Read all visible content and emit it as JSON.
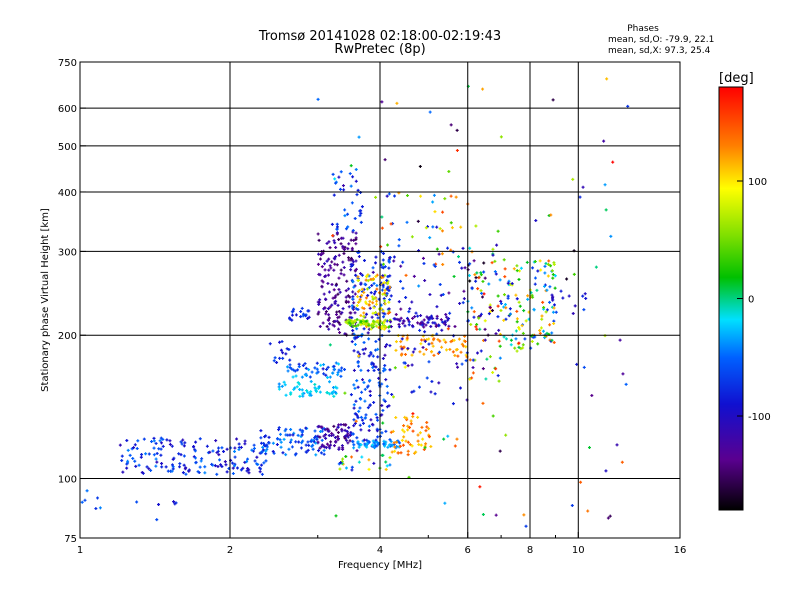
{
  "chart_data": {
    "type": "scatter",
    "title": "Tromsø 20141028 02:18:00-02:19:43",
    "subtitle": "RwPretec (8p)",
    "xlabel": "Frequency [MHz]",
    "ylabel": "Stationary phase Virtual Height [km]",
    "x_scale": "log",
    "y_scale": "log",
    "xlim": [
      1,
      16
    ],
    "ylim": [
      75,
      750
    ],
    "x_ticks": [
      1,
      2,
      4,
      6,
      8,
      10,
      16
    ],
    "y_ticks": [
      75,
      100,
      200,
      300,
      400,
      500,
      600,
      750
    ],
    "x_tick_labels": [
      "1",
      "2",
      "4",
      "6",
      "8",
      "10",
      "16"
    ],
    "y_tick_labels": [
      "75",
      "100",
      "200",
      "300",
      "400",
      "500",
      "600",
      "750"
    ],
    "x_minor": [
      3,
      5,
      7,
      9
    ],
    "grid": true,
    "phase_box": {
      "title": "Phases",
      "line1": "mean, sd,O: -79.9, 22.1",
      "line2": "mean, sd,X:  97.3, 25.4"
    },
    "colorbar": {
      "label": "[deg]",
      "range": [
        -180,
        180
      ],
      "ticks": [
        100,
        0,
        -100
      ],
      "tick_labels": [
        "100",
        "0",
        "-100"
      ]
    },
    "clusters": [
      {
        "f": [
          1.0,
          1.1
        ],
        "h": [
          85,
          95
        ],
        "phase": [
          -80,
          -30
        ],
        "n": 6
      },
      {
        "f": [
          1.25,
          1.65
        ],
        "h": [
          80,
          90
        ],
        "phase": [
          -100,
          -60
        ],
        "n": 6
      },
      {
        "f": [
          1.2,
          2.4
        ],
        "h": [
          102,
          122
        ],
        "phase": [
          -110,
          -40
        ],
        "n": 170
      },
      {
        "f": [
          2.3,
          3.1
        ],
        "h": [
          112,
          128
        ],
        "phase": [
          -90,
          -30
        ],
        "n": 90
      },
      {
        "f": [
          3.0,
          3.5
        ],
        "h": [
          115,
          130
        ],
        "phase": [
          -150,
          -100
        ],
        "n": 70
      },
      {
        "f": [
          3.5,
          4.4
        ],
        "h": [
          116,
          120
        ],
        "phase": [
          -60,
          -20
        ],
        "n": 60
      },
      {
        "f": [
          4.2,
          5.1
        ],
        "h": [
          112,
          135
        ],
        "phase": [
          100,
          150
        ],
        "n": 55
      },
      {
        "f": [
          3.3,
          4.2
        ],
        "h": [
          104,
          112
        ],
        "phase": [
          -110,
          140
        ],
        "n": 25
      },
      {
        "f": [
          2.5,
          3.3
        ],
        "h": [
          148,
          160
        ],
        "phase": [
          -40,
          -10
        ],
        "n": 50
      },
      {
        "f": [
          2.6,
          3.4
        ],
        "h": [
          163,
          175
        ],
        "phase": [
          -80,
          -20
        ],
        "n": 50
      },
      {
        "f": [
          2.4,
          2.7
        ],
        "h": [
          175,
          195
        ],
        "phase": [
          -100,
          -60
        ],
        "n": 15
      },
      {
        "f": [
          2.6,
          2.9
        ],
        "h": [
          215,
          230
        ],
        "phase": [
          -100,
          -50
        ],
        "n": 20
      },
      {
        "f": [
          3.0,
          3.6
        ],
        "h": [
          200,
          330
        ],
        "phase": [
          -155,
          -105
        ],
        "n": 170
      },
      {
        "f": [
          3.2,
          3.7
        ],
        "h": [
          330,
          450
        ],
        "phase": [
          -100,
          -40
        ],
        "n": 35
      },
      {
        "f": [
          3.5,
          4.2
        ],
        "h": [
          120,
          300
        ],
        "phase": [
          -110,
          -40
        ],
        "n": 230
      },
      {
        "f": [
          3.6,
          4.2
        ],
        "h": [
          205,
          270
        ],
        "phase": [
          60,
          140
        ],
        "n": 90
      },
      {
        "f": [
          3.4,
          4.2
        ],
        "h": [
          208,
          216
        ],
        "phase": [
          20,
          90
        ],
        "n": 60
      },
      {
        "f": [
          4.2,
          5.5
        ],
        "h": [
          208,
          220
        ],
        "phase": [
          -140,
          -80
        ],
        "n": 60
      },
      {
        "f": [
          4.3,
          6.0
        ],
        "h": [
          180,
          200
        ],
        "phase": [
          100,
          145
        ],
        "n": 60
      },
      {
        "f": [
          4.0,
          6.0
        ],
        "h": [
          140,
          310
        ],
        "phase": [
          -140,
          -60
        ],
        "n": 90
      },
      {
        "f": [
          4.0,
          6.2
        ],
        "h": [
          250,
          400
        ],
        "phase": [
          -100,
          160
        ],
        "n": 45
      },
      {
        "f": [
          6.0,
          7.0
        ],
        "h": [
          160,
          310
        ],
        "phase": [
          -180,
          180
        ],
        "n": 90
      },
      {
        "f": [
          7.0,
          9.0
        ],
        "h": [
          185,
          290
        ],
        "phase": [
          -100,
          150
        ],
        "n": 130
      },
      {
        "f": [
          8.8,
          10.4
        ],
        "h": [
          220,
          250
        ],
        "phase": [
          -120,
          -60
        ],
        "n": 14
      },
      {
        "f": [
          3.0,
          13.0
        ],
        "h": [
          75,
          700
        ],
        "phase": [
          -180,
          180
        ],
        "n": 110
      }
    ]
  }
}
